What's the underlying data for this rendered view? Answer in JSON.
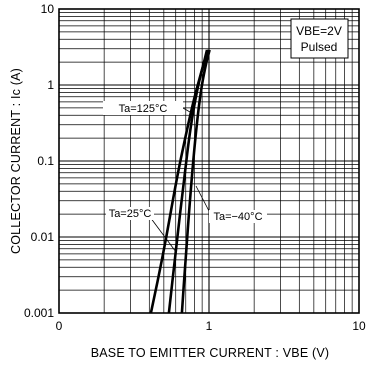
{
  "chart_data": {
    "type": "line",
    "x_scale": "log",
    "y_scale": "log",
    "xlim": [
      0,
      10
    ],
    "ylim": [
      0.001,
      10
    ],
    "x_tick_labels": [
      "0",
      "1",
      "10"
    ],
    "y_tick_labels": [
      "0.001",
      "0.01",
      "0.1",
      "1",
      "10"
    ],
    "xlabel": "BASE  TO  EMITTER  CURRENT : VBE (V)",
    "ylabel": "COLLECTOR  CURRENT : Ic (A)",
    "grid": true,
    "conditions": [
      "VBE=2V",
      "Pulsed"
    ],
    "series": [
      {
        "name": "Ta=125°C",
        "points": [
          [
            0.41,
            0.001
          ],
          [
            0.5,
            0.0065
          ],
          [
            0.6,
            0.05
          ],
          [
            0.7,
            0.22
          ],
          [
            0.8,
            0.7
          ],
          [
            0.9,
            1.6
          ],
          [
            0.97,
            2.9
          ]
        ]
      },
      {
        "name": "Ta=25°C",
        "points": [
          [
            0.54,
            0.001
          ],
          [
            0.6,
            0.0065
          ],
          [
            0.68,
            0.055
          ],
          [
            0.75,
            0.27
          ],
          [
            0.83,
            0.85
          ],
          [
            0.92,
            1.9
          ],
          [
            0.99,
            2.9
          ]
        ]
      },
      {
        "name": "Ta=−40°C",
        "points": [
          [
            0.66,
            0.001
          ],
          [
            0.7,
            0.0055
          ],
          [
            0.76,
            0.048
          ],
          [
            0.82,
            0.26
          ],
          [
            0.89,
            0.95
          ],
          [
            0.96,
            2.0
          ],
          [
            1.01,
            2.9
          ]
        ]
      }
    ]
  }
}
